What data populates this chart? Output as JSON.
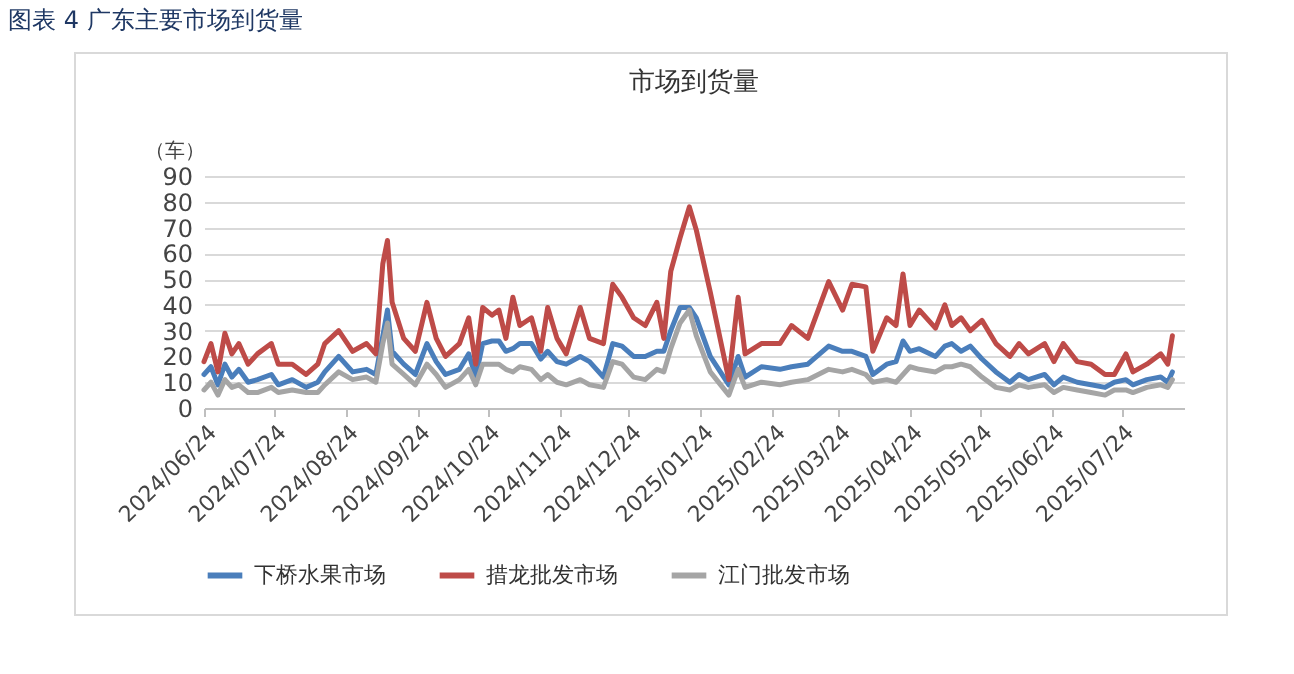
{
  "chart_data": {
    "type": "line",
    "title": "图表 4 广东主要市场到货量",
    "subtitle": "市场到货量",
    "ylabel": "（车）",
    "x": [
      "2024-06-24",
      "2024-06-27",
      "2024-06-30",
      "2024-07-03",
      "2024-07-06",
      "2024-07-09",
      "2024-07-13",
      "2024-07-17",
      "2024-07-23",
      "2024-07-26",
      "2024-08-01",
      "2024-08-07",
      "2024-08-12",
      "2024-08-15",
      "2024-08-21",
      "2024-08-27",
      "2024-09-02",
      "2024-09-06",
      "2024-09-09",
      "2024-09-11",
      "2024-09-13",
      "2024-09-18",
      "2024-09-23",
      "2024-09-28",
      "2024-10-02",
      "2024-10-06",
      "2024-10-12",
      "2024-10-16",
      "2024-10-19",
      "2024-10-22",
      "2024-10-26",
      "2024-10-29",
      "2024-11-01",
      "2024-11-04",
      "2024-11-07",
      "2024-11-12",
      "2024-11-16",
      "2024-11-19",
      "2024-11-23",
      "2024-11-27",
      "2024-12-03",
      "2024-12-07",
      "2024-12-13",
      "2024-12-17",
      "2024-12-21",
      "2024-12-26",
      "2024-12-31",
      "2025-01-05",
      "2025-01-08",
      "2025-01-11",
      "2025-01-15",
      "2025-01-19",
      "2025-01-22",
      "2025-01-28",
      "2025-02-05",
      "2025-02-09",
      "2025-02-12",
      "2025-02-19",
      "2025-02-27",
      "2025-03-04",
      "2025-03-11",
      "2025-03-20",
      "2025-03-26",
      "2025-03-30",
      "2025-04-05",
      "2025-04-08",
      "2025-04-14",
      "2025-04-18",
      "2025-04-21",
      "2025-04-24",
      "2025-04-28",
      "2025-05-05",
      "2025-05-09",
      "2025-05-12",
      "2025-05-16",
      "2025-05-20",
      "2025-05-25",
      "2025-05-31",
      "2025-06-06",
      "2025-06-10",
      "2025-06-14",
      "2025-06-21",
      "2025-06-25",
      "2025-06-29",
      "2025-07-05",
      "2025-07-11",
      "2025-07-17",
      "2025-07-21",
      "2025-07-26",
      "2025-07-29",
      "2025-08-04",
      "2025-08-10",
      "2025-08-13",
      "2025-08-15"
    ],
    "series": [
      {
        "name": "下桥水果市场",
        "color": "#4a7ebb",
        "values": [
          13,
          16,
          9,
          17,
          12,
          15,
          10,
          11,
          13,
          9,
          11,
          8,
          10,
          14,
          20,
          14,
          15,
          13,
          28,
          38,
          22,
          17,
          13,
          25,
          18,
          13,
          15,
          21,
          12,
          25,
          26,
          26,
          22,
          23,
          25,
          25,
          19,
          22,
          18,
          17,
          20,
          18,
          12,
          25,
          24,
          20,
          20,
          22,
          22,
          30,
          39,
          39,
          35,
          20,
          9,
          20,
          12,
          16,
          15,
          16,
          17,
          24,
          22,
          22,
          20,
          13,
          17,
          18,
          26,
          22,
          23,
          20,
          24,
          25,
          22,
          24,
          19,
          14,
          10,
          13,
          11,
          13,
          9,
          12,
          10,
          9,
          8,
          10,
          11,
          9,
          11,
          12,
          10,
          14
        ]
      },
      {
        "name": "措龙批发市场",
        "color": "#be4b48",
        "values": [
          18,
          25,
          14,
          29,
          21,
          25,
          17,
          21,
          25,
          17,
          17,
          13,
          17,
          25,
          30,
          22,
          25,
          21,
          56,
          65,
          41,
          27,
          22,
          41,
          27,
          20,
          25,
          35,
          17,
          39,
          36,
          38,
          27,
          43,
          32,
          35,
          22,
          39,
          27,
          21,
          39,
          27,
          25,
          48,
          43,
          35,
          32,
          41,
          27,
          53,
          66,
          78,
          69,
          45,
          11,
          43,
          21,
          25,
          25,
          32,
          27,
          49,
          38,
          48,
          47,
          22,
          35,
          32,
          52,
          32,
          38,
          31,
          40,
          32,
          35,
          30,
          34,
          25,
          20,
          25,
          21,
          25,
          18,
          25,
          18,
          17,
          13,
          13,
          21,
          14,
          17,
          21,
          17,
          28
        ]
      },
      {
        "name": "江门批发市场",
        "color": "#a5a5a5",
        "values": [
          7,
          10,
          5,
          11,
          8,
          9,
          6,
          6,
          8,
          6,
          7,
          6,
          6,
          9,
          14,
          11,
          12,
          10,
          25,
          33,
          17,
          13,
          9,
          17,
          13,
          8,
          11,
          15,
          9,
          17,
          17,
          17,
          15,
          14,
          16,
          15,
          11,
          13,
          10,
          9,
          11,
          9,
          8,
          18,
          17,
          12,
          11,
          15,
          14,
          23,
          33,
          38,
          28,
          14,
          5,
          15,
          8,
          10,
          9,
          10,
          11,
          15,
          14,
          15,
          13,
          10,
          11,
          10,
          13,
          16,
          15,
          14,
          16,
          16,
          17,
          16,
          12,
          8,
          7,
          9,
          8,
          9,
          6,
          8,
          7,
          6,
          5,
          7,
          7,
          6,
          8,
          9,
          8,
          11
        ]
      }
    ],
    "xlim": [
      "2024-06-24",
      "2025-08-20"
    ],
    "xticks": [
      {
        "value": "2024-06-24",
        "label": "2024/06/24"
      },
      {
        "value": "2024-07-24",
        "label": "2024/07/24"
      },
      {
        "value": "2024-08-24",
        "label": "2024/08/24"
      },
      {
        "value": "2024-09-24",
        "label": "2024/09/24"
      },
      {
        "value": "2024-10-24",
        "label": "2024/10/24"
      },
      {
        "value": "2024-11-24",
        "label": "2024/11/24"
      },
      {
        "value": "2024-12-24",
        "label": "2024/12/24"
      },
      {
        "value": "2025-01-24",
        "label": "2025/01/24"
      },
      {
        "value": "2025-02-24",
        "label": "2025/02/24"
      },
      {
        "value": "2025-03-24",
        "label": "2025/03/24"
      },
      {
        "value": "2025-04-24",
        "label": "2025/04/24"
      },
      {
        "value": "2025-05-24",
        "label": "2025/05/24"
      },
      {
        "value": "2025-06-24",
        "label": "2025/06/24"
      },
      {
        "value": "2025-07-24",
        "label": "2025/07/24"
      }
    ],
    "ylim": [
      0,
      90
    ],
    "yticks": [
      0,
      10,
      20,
      30,
      40,
      50,
      60,
      70,
      80,
      90
    ],
    "grid": "y",
    "legend": "bottom",
    "line_style": "solid"
  }
}
